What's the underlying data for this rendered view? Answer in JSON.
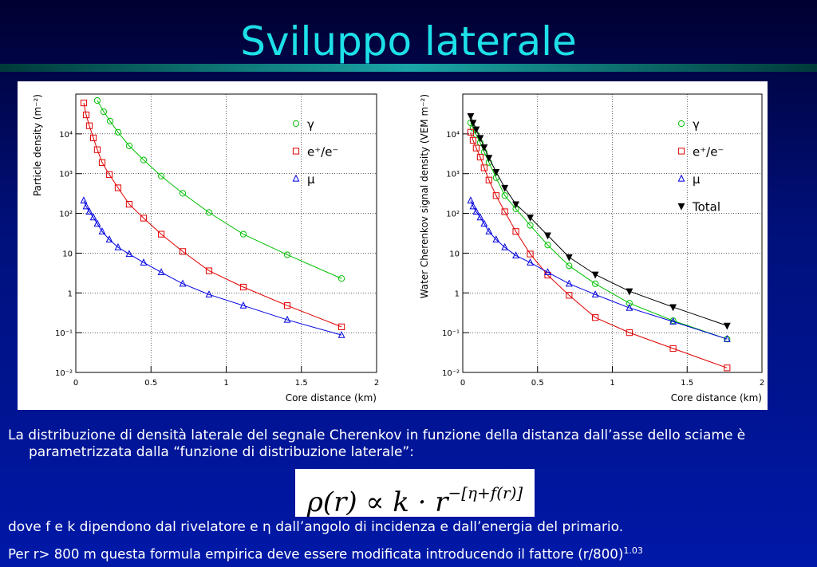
{
  "title": "Sviluppo laterale",
  "chart_data": [
    {
      "type": "scatter",
      "ylabel": "Particle density (m⁻²)",
      "xlabel": "Core distance (km)",
      "xlim": [
        0,
        2
      ],
      "xticks": [
        0,
        0.5,
        1,
        1.5,
        2
      ],
      "ylim": [
        0.01,
        100000
      ],
      "log_y": true,
      "yticks": [
        {
          "value": 0.01,
          "label": "10⁻²"
        },
        {
          "value": 0.1,
          "label": "10⁻¹"
        },
        1,
        10,
        {
          "value": 100,
          "label": "10²"
        },
        {
          "value": 1000,
          "label": "10³"
        },
        {
          "value": 10000,
          "label": "10⁴"
        }
      ],
      "grid": true,
      "legend": "upper right",
      "series": [
        {
          "name": "γ",
          "color": "#00c000",
          "marker": "circle",
          "x": [
            0.143,
            0.186,
            0.228,
            0.281,
            0.355,
            0.451,
            0.568,
            0.711,
            0.886,
            1.114,
            1.406,
            1.767
          ],
          "values": [
            69000,
            36000,
            21000,
            11000,
            5000,
            2200,
            870,
            320,
            105,
            30,
            9.1,
            2.3
          ]
        },
        {
          "name": "e⁺/e⁻",
          "color": "#e00000",
          "marker": "square",
          "x": [
            0.053,
            0.069,
            0.09,
            0.117,
            0.143,
            0.175,
            0.223,
            0.281,
            0.355,
            0.451,
            0.568,
            0.711,
            0.886,
            1.114,
            1.406,
            1.767
          ],
          "values": [
            60000,
            30000,
            16000,
            7900,
            4000,
            1900,
            950,
            440,
            170,
            76,
            30,
            11,
            3.6,
            1.4,
            0.48,
            0.14
          ]
        },
        {
          "name": "μ",
          "color": "#0000e0",
          "marker": "triangle",
          "x": [
            0.053,
            0.069,
            0.09,
            0.117,
            0.143,
            0.175,
            0.223,
            0.281,
            0.355,
            0.451,
            0.568,
            0.711,
            0.886,
            1.114,
            1.406,
            1.767
          ],
          "values": [
            210,
            150,
            110,
            79,
            55,
            35,
            22,
            14,
            9.5,
            5.8,
            3.3,
            1.7,
            0.91,
            0.48,
            0.21,
            0.087
          ]
        }
      ]
    },
    {
      "type": "scatter",
      "ylabel": "Water Cherenkov signal density (VEM m⁻²)",
      "xlabel": "Core distance (km)",
      "xlim": [
        0,
        2
      ],
      "xticks": [
        0,
        0.5,
        1,
        1.5,
        2
      ],
      "ylim": [
        0.01,
        100000
      ],
      "log_y": true,
      "yticks": [
        {
          "value": 0.01,
          "label": "10⁻²"
        },
        {
          "value": 0.1,
          "label": "10⁻¹"
        },
        1,
        10,
        {
          "value": 100,
          "label": "10²"
        },
        {
          "value": 1000,
          "label": "10³"
        },
        {
          "value": 10000,
          "label": "10⁴"
        }
      ],
      "grid": true,
      "legend": "upper right",
      "series": [
        {
          "name": "γ",
          "color": "#00c000",
          "marker": "circle",
          "x": [
            0.053,
            0.069,
            0.09,
            0.117,
            0.143,
            0.175,
            0.223,
            0.281,
            0.355,
            0.451,
            0.568,
            0.711,
            0.886,
            1.114,
            1.406,
            1.767
          ],
          "values": [
            19000,
            14000,
            9500,
            6000,
            3500,
            1900,
            790,
            280,
            130,
            50,
            16,
            4.8,
            1.7,
            0.55,
            0.2,
            0.069
          ]
        },
        {
          "name": "e⁺/e⁻",
          "color": "#e00000",
          "marker": "square",
          "x": [
            0.053,
            0.069,
            0.09,
            0.117,
            0.143,
            0.175,
            0.223,
            0.281,
            0.355,
            0.451,
            0.568,
            0.711,
            0.886,
            1.114,
            1.406,
            1.767
          ],
          "values": [
            11000,
            6900,
            4400,
            2600,
            1400,
            690,
            280,
            110,
            35,
            9.5,
            2.8,
            0.87,
            0.24,
            0.1,
            0.04,
            0.013
          ]
        },
        {
          "name": "μ",
          "color": "#0000e0",
          "marker": "triangle",
          "x": [
            0.053,
            0.069,
            0.09,
            0.117,
            0.143,
            0.175,
            0.223,
            0.281,
            0.355,
            0.451,
            0.568,
            0.711,
            0.886,
            1.114,
            1.406,
            1.767
          ],
          "values": [
            210,
            150,
            110,
            79,
            55,
            35,
            22,
            14,
            8.7,
            5.8,
            3.3,
            1.7,
            0.91,
            0.42,
            0.19,
            0.069
          ]
        },
        {
          "name": "Total",
          "color": "#000000",
          "marker": "triangle-down",
          "x": [
            0.053,
            0.069,
            0.09,
            0.117,
            0.143,
            0.175,
            0.223,
            0.281,
            0.355,
            0.451,
            0.568,
            0.711,
            0.886,
            1.114,
            1.406,
            1.767
          ],
          "values": [
            28000,
            19000,
            13000,
            7900,
            4600,
            2500,
            1100,
            440,
            170,
            79,
            28,
            7.9,
            2.9,
            1.1,
            0.44,
            0.15
          ]
        }
      ]
    }
  ],
  "text": {
    "paragraph": "La distribuzione di densità laterale del segnale Cherenkov in funzione della distanza dall’asse dello sciame è parametrizzata dalla “funzione di distribuzione laterale”:",
    "formula": {
      "base": "ρ(r) ∝ k · r",
      "exponent": "−[η+f(r)]"
    },
    "line1": "dove f e k dipendono dal rivelatore e η dall’angolo di incidenza e dall’energia del primario.",
    "line2": "Per r> 800 m questa formula empirica deve essere modificata introducendo il fattore (r/800)",
    "line2_exponent": "1.03"
  }
}
